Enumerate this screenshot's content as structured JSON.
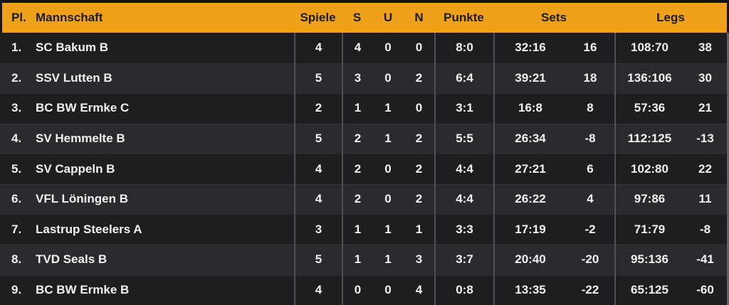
{
  "table": {
    "header": {
      "pl": "Pl.",
      "mannschaft": "Mannschaft",
      "spiele": "Spiele",
      "s": "S",
      "u": "U",
      "n": "N",
      "punkte": "Punkte",
      "sets": "Sets",
      "legs": "Legs"
    },
    "rows": [
      {
        "pl": "1.",
        "team": "SC Bakum B",
        "spiele": "4",
        "s": "4",
        "u": "0",
        "n": "0",
        "punkte": "8:0",
        "sets_ratio": "32:16",
        "sets_diff": "16",
        "legs_ratio": "108:70",
        "legs_diff": "38"
      },
      {
        "pl": "2.",
        "team": "SSV Lutten B",
        "spiele": "5",
        "s": "3",
        "u": "0",
        "n": "2",
        "punkte": "6:4",
        "sets_ratio": "39:21",
        "sets_diff": "18",
        "legs_ratio": "136:106",
        "legs_diff": "30"
      },
      {
        "pl": "3.",
        "team": "BC BW Ermke C",
        "spiele": "2",
        "s": "1",
        "u": "1",
        "n": "0",
        "punkte": "3:1",
        "sets_ratio": "16:8",
        "sets_diff": "8",
        "legs_ratio": "57:36",
        "legs_diff": "21"
      },
      {
        "pl": "4.",
        "team": "SV Hemmelte B",
        "spiele": "5",
        "s": "2",
        "u": "1",
        "n": "2",
        "punkte": "5:5",
        "sets_ratio": "26:34",
        "sets_diff": "-8",
        "legs_ratio": "112:125",
        "legs_diff": "-13"
      },
      {
        "pl": "5.",
        "team": "SV Cappeln B",
        "spiele": "4",
        "s": "2",
        "u": "0",
        "n": "2",
        "punkte": "4:4",
        "sets_ratio": "27:21",
        "sets_diff": "6",
        "legs_ratio": "102:80",
        "legs_diff": "22"
      },
      {
        "pl": "6.",
        "team": "VFL Löningen B",
        "spiele": "4",
        "s": "2",
        "u": "0",
        "n": "2",
        "punkte": "4:4",
        "sets_ratio": "26:22",
        "sets_diff": "4",
        "legs_ratio": "97:86",
        "legs_diff": "11"
      },
      {
        "pl": "7.",
        "team": "Lastrup Steelers A",
        "spiele": "3",
        "s": "1",
        "u": "1",
        "n": "1",
        "punkte": "3:3",
        "sets_ratio": "17:19",
        "sets_diff": "-2",
        "legs_ratio": "71:79",
        "legs_diff": "-8"
      },
      {
        "pl": "8.",
        "team": "TVD Seals B",
        "spiele": "5",
        "s": "1",
        "u": "1",
        "n": "3",
        "punkte": "3:7",
        "sets_ratio": "20:40",
        "sets_diff": "-20",
        "legs_ratio": "95:136",
        "legs_diff": "-41"
      },
      {
        "pl": "9.",
        "team": "BC BW Ermke B",
        "spiele": "4",
        "s": "0",
        "u": "0",
        "n": "4",
        "punkte": "0:8",
        "sets_ratio": "13:35",
        "sets_diff": "-22",
        "legs_ratio": "65:125",
        "legs_diff": "-60"
      }
    ]
  },
  "colors": {
    "header_bg": "#F0A11C",
    "header_text": "#1B1B1B",
    "row_odd_bg": "#1E1E21",
    "row_even_bg": "#2B2B2F",
    "row_text": "#F4F2F0",
    "divider": "#4F4F54",
    "frame": "#141414",
    "right_strip": "#606066"
  }
}
